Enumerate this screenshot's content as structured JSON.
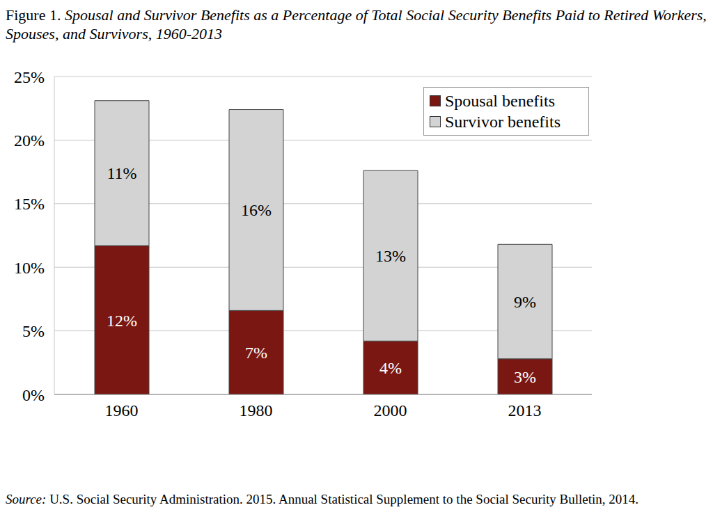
{
  "chart_data": {
    "type": "bar",
    "title": "Figure 1. Spousal and Survivor Benefits as a Percentage of Total Social Security Benefits Paid to Retired Workers, Spouses, and Survivors, 1960-2013",
    "source": "Source: U.S. Social Security Administration. 2015. Annual Statistical Supplement to the Social Security Bulletin, 2014.",
    "categories": [
      "1960",
      "1980",
      "2000",
      "2013"
    ],
    "series": [
      {
        "name": "Spousal benefits",
        "color": "#7b1712",
        "values": [
          11.7,
          6.6,
          4.2,
          2.8
        ],
        "value_labels": [
          "12%",
          "7%",
          "4%",
          "3%"
        ]
      },
      {
        "name": "Survivor benefits",
        "color": "#d3d3d3",
        "values": [
          11.4,
          15.8,
          13.4,
          9.0
        ],
        "value_labels": [
          "11%",
          "16%",
          "13%",
          "9%"
        ]
      }
    ],
    "ylim": [
      0,
      25
    ],
    "yticks": [
      {
        "value": 0,
        "label": "0%"
      },
      {
        "value": 5,
        "label": "5%"
      },
      {
        "value": 10,
        "label": "10%"
      },
      {
        "value": 15,
        "label": "15%"
      },
      {
        "value": 20,
        "label": "20%"
      },
      {
        "value": 25,
        "label": "25%"
      }
    ],
    "grid": true,
    "legend": "upper right",
    "stacked": true,
    "data_labels": true
  }
}
